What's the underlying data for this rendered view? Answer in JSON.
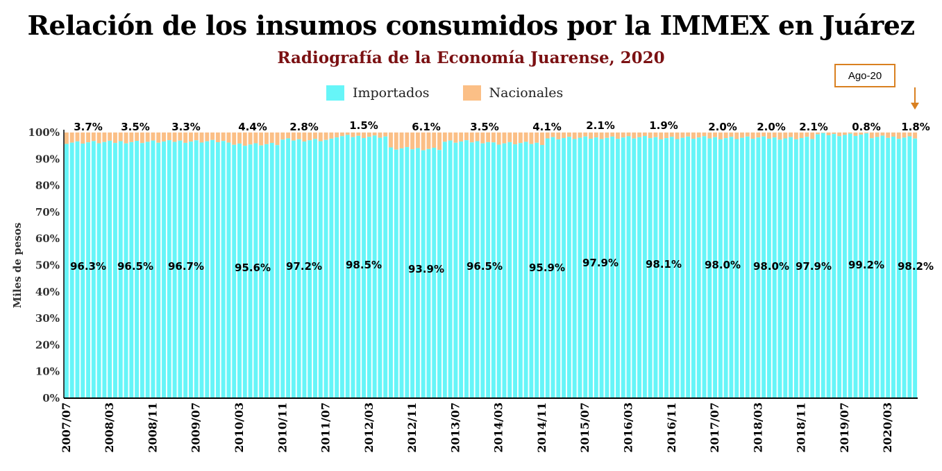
{
  "chart_data": {
    "type": "bar",
    "stacked": true,
    "title": "Relación de los insumos consumidos por la IMMEX en Juárez",
    "subtitle": "Radiografía de la Economía Juarense, 2020",
    "ylabel": "Miles de pesos",
    "xlabel": "",
    "ylim": [
      0,
      100
    ],
    "yticks": [
      "0%",
      "10%",
      "20%",
      "30%",
      "40%",
      "50%",
      "60%",
      "70%",
      "80%",
      "90%",
      "100%"
    ],
    "x_tick_labels": [
      "2007/07",
      "2008/03",
      "2008/11",
      "2009/07",
      "2010/03",
      "2010/11",
      "2011/07",
      "2012/03",
      "2012/11",
      "2013/07",
      "2014/03",
      "2014/11",
      "2015/07",
      "2016/03",
      "2016/11",
      "2017/07",
      "2018/03",
      "2018/11",
      "2019/07",
      "2020/03"
    ],
    "period_start": "2007/07",
    "period_end": "2020/08",
    "legend": [
      {
        "name": "Importados",
        "color": "#66f5f8"
      },
      {
        "name": "Nacionales",
        "color": "#fbbf86"
      }
    ],
    "legend_position": "top-center",
    "annotation": {
      "text": "Ago-20",
      "color": "#d98020"
    },
    "annual_summary": {
      "importados_labels": [
        "96.3%",
        "96.5%",
        "96.7%",
        "95.6%",
        "97.2%",
        "98.5%",
        "93.9%",
        "96.5%",
        "95.9%",
        "97.9%",
        "98.1%",
        "98.0%",
        "98.0%",
        "97.9%",
        "99.2%",
        "98.2%"
      ],
      "nacionales_labels": [
        "3.7%",
        "3.5%",
        "3.3%",
        "4.4%",
        "2.8%",
        "1.5%",
        "6.1%",
        "3.5%",
        "4.1%",
        "2.1%",
        "1.9%",
        "2.0%",
        "2.0%",
        "2.1%",
        "0.8%",
        "1.8%"
      ]
    }
  }
}
